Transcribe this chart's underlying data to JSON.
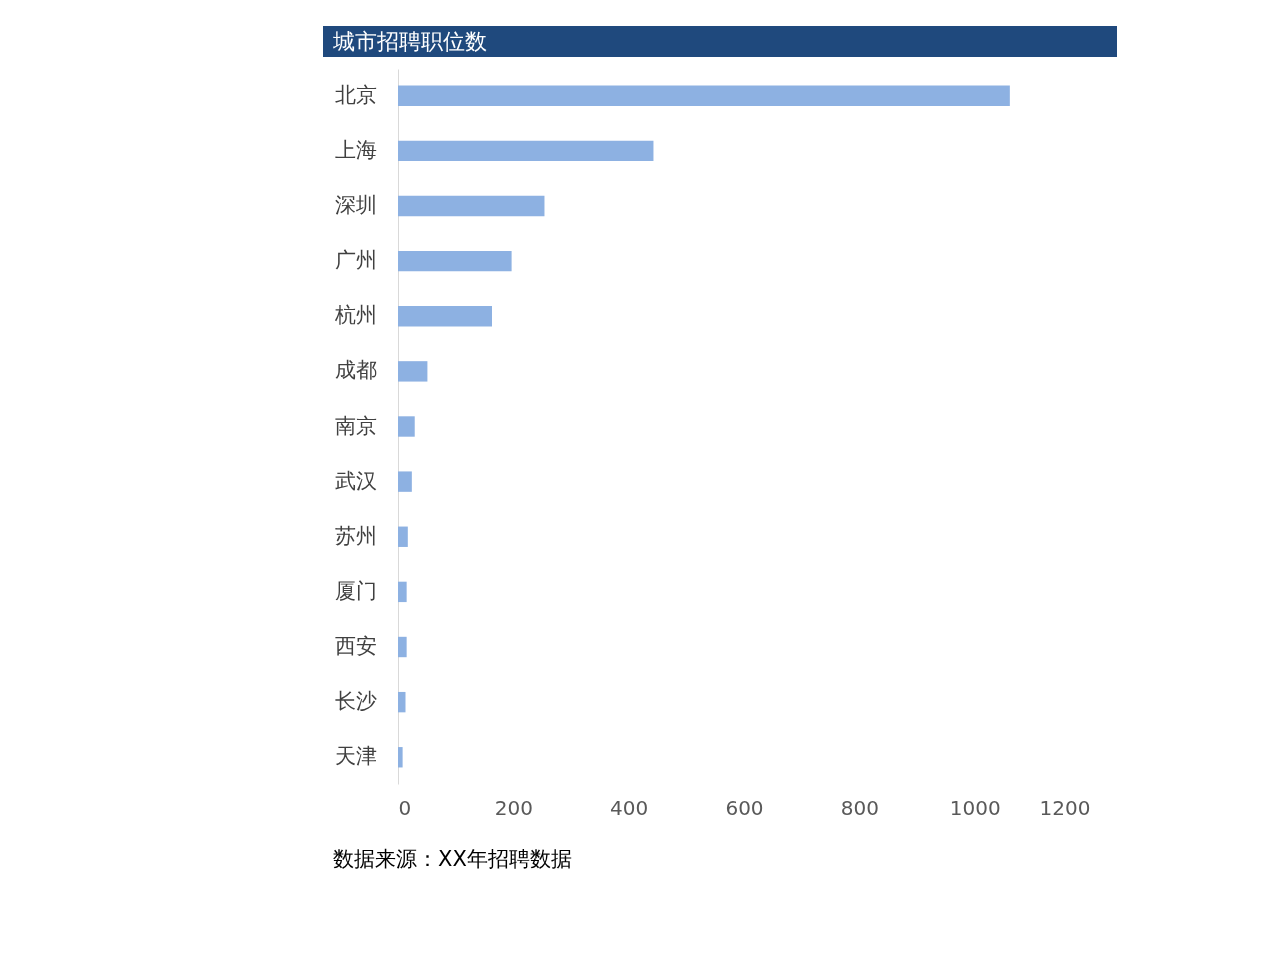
{
  "chart_data": {
    "type": "bar",
    "orientation": "horizontal",
    "title": "城市招聘职位数",
    "categories": [
      "北京",
      "上海",
      "深圳",
      "广州",
      "杭州",
      "成都",
      "南京",
      "武汉",
      "苏州",
      "厦门",
      "西安",
      "长沙",
      "天津"
    ],
    "values": [
      1061,
      443,
      254,
      197,
      163,
      51,
      29,
      24,
      17,
      15,
      15,
      13,
      8
    ],
    "color": "#8db1e2",
    "xlim": [
      0,
      1200
    ],
    "xticks": [
      0,
      200,
      400,
      600,
      800,
      1000,
      1200
    ],
    "grid": false,
    "annotations": [
      "数据来源：XX年招聘数据"
    ]
  }
}
